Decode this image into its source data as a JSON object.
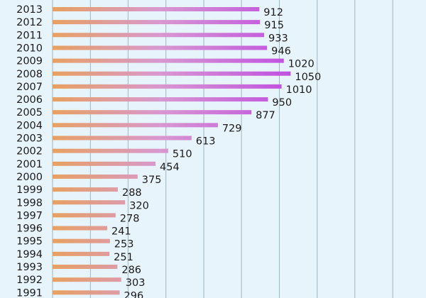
{
  "chart_data": {
    "type": "bar",
    "orientation": "horizontal",
    "categories": [
      "2013",
      "2012",
      "2011",
      "2010",
      "2009",
      "2008",
      "2007",
      "2006",
      "2005",
      "2004",
      "2003",
      "2002",
      "2001",
      "2000",
      "1999",
      "1998",
      "1997",
      "1996",
      "1995",
      "1994",
      "1993",
      "1992",
      "1991"
    ],
    "values": [
      912,
      915,
      933,
      946,
      1020,
      1050,
      1010,
      950,
      877,
      729,
      613,
      510,
      454,
      375,
      288,
      320,
      278,
      241,
      253,
      251,
      286,
      303,
      296
    ],
    "xlim": [
      0,
      1500
    ],
    "gridlines": [
      0,
      167,
      333,
      500,
      667,
      833,
      1000,
      1167,
      1333,
      1500
    ],
    "colors": {
      "bar_start": "#e8a060",
      "bar_mid": "#d898d0",
      "bar_end": "#c050e0"
    }
  }
}
